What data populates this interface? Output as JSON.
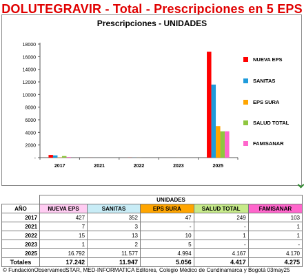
{
  "title": "DOLUTEGRAVIR - Total - Prescripciones en 5 EPS",
  "chart_data": {
    "type": "bar",
    "title": "Prescripciones - UNIDADES",
    "categories": [
      "2017",
      "2021",
      "2022",
      "2023",
      "2025"
    ],
    "ylim": [
      0,
      18000
    ],
    "yticks": [
      "-",
      "2000",
      "4000",
      "6000",
      "8000",
      "10000",
      "12000",
      "14000",
      "16000",
      "18000"
    ],
    "grid": false,
    "legend_position": "right",
    "series": [
      {
        "name": "NUEVA EPS",
        "color": "#ff0000",
        "values": [
          427,
          7,
          15,
          1,
          16792
        ]
      },
      {
        "name": "SANITAS",
        "color": "#1f9bdb",
        "values": [
          352,
          3,
          13,
          2,
          11577
        ]
      },
      {
        "name": "EPS SURA",
        "color": "#ffa500",
        "values": [
          47,
          0,
          10,
          5,
          4994
        ]
      },
      {
        "name": "SALUD TOTAL",
        "color": "#8fc63f",
        "values": [
          249,
          0,
          1,
          0,
          4167
        ]
      },
      {
        "name": "FAMISANAR",
        "color": "#ff66cc",
        "values": [
          103,
          1,
          1,
          0,
          4170
        ]
      }
    ]
  },
  "table": {
    "group_header": "UNIDADES",
    "year_header": "AÑO",
    "columns": [
      {
        "label": "NUEVA EPS",
        "bg": "#ffccf2"
      },
      {
        "label": "SANITAS",
        "bg": "#c8ecf6"
      },
      {
        "label": "EPS SURA",
        "bg": "#ffa500"
      },
      {
        "label": "SALUD TOTAL",
        "bg": "#c6ea8a"
      },
      {
        "label": "FAMISANAR",
        "bg": "#ff66cc"
      }
    ],
    "rows": [
      {
        "year": "2017",
        "cells": [
          "427",
          "352",
          "47",
          "249",
          "103"
        ]
      },
      {
        "year": "2021",
        "cells": [
          "7",
          "3",
          "-",
          "-",
          "1"
        ]
      },
      {
        "year": "2022",
        "cells": [
          "15",
          "13",
          "10",
          "1",
          "1"
        ]
      },
      {
        "year": "2023",
        "cells": [
          "1",
          "2",
          "5",
          "-",
          "-"
        ]
      },
      {
        "year": "2025",
        "cells": [
          "16.792",
          "11.577",
          "4.994",
          "4.167",
          "4.170"
        ]
      }
    ],
    "totals_label": "Totales",
    "totals": [
      "17.242",
      "11.947",
      "5.056",
      "4.417",
      "4.275"
    ]
  },
  "footer": "© FundaciónObservamedSTAR, MED-INFORMATICA Editores, Colegio Médico de Cundinamarca y Bogotá 03may25"
}
